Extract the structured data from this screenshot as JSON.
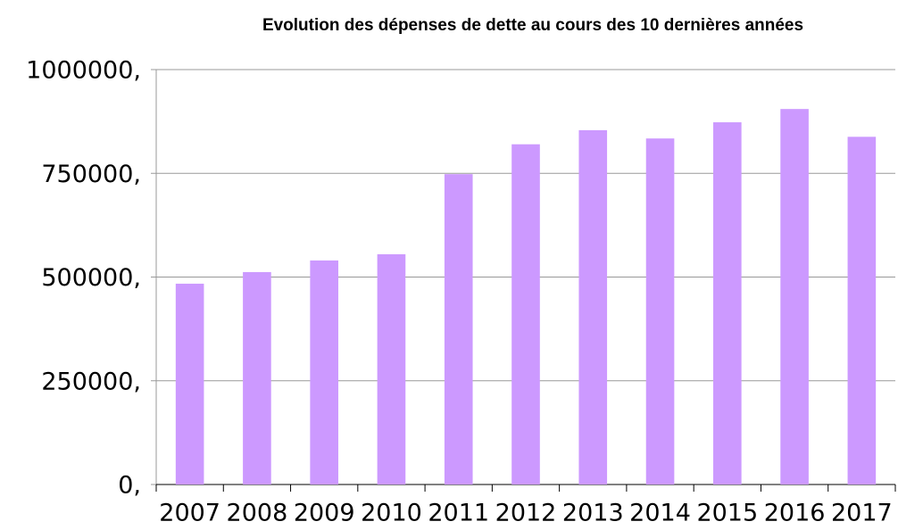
{
  "chart_data": {
    "type": "bar",
    "title": "Evolution des dépenses de dette au cours des 10 dernières années",
    "categories": [
      "2007",
      "2008",
      "2009",
      "2010",
      "2011",
      "2012",
      "2013",
      "2014",
      "2015",
      "2016",
      "2017"
    ],
    "values": [
      484000,
      512000,
      540000,
      555000,
      748000,
      820000,
      854000,
      834000,
      873000,
      905000,
      838000
    ],
    "color": "#cc99ff",
    "ylim": [
      0,
      1000000
    ],
    "yticks": [
      {
        "value": 0,
        "label": "0,"
      },
      {
        "value": 250000,
        "label": "250000,"
      },
      {
        "value": 500000,
        "label": "500000,"
      },
      {
        "value": 750000,
        "label": "750000,"
      },
      {
        "value": 1000000,
        "label": "1000000,"
      }
    ],
    "grid": true
  }
}
